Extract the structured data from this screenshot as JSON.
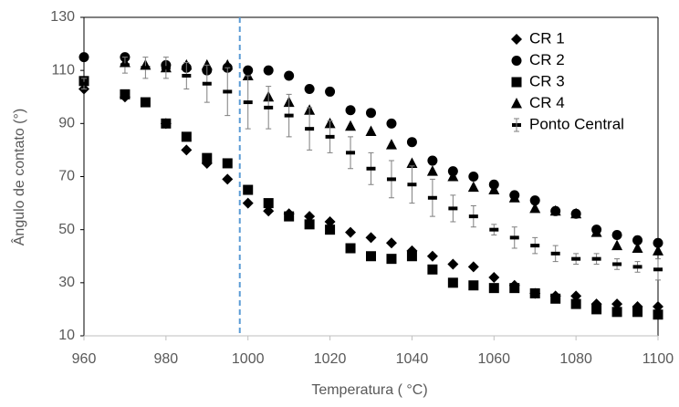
{
  "chart_data": {
    "type": "scatter",
    "x_label": "Temperatura ( °C)",
    "y_label": "Ângulo de contato (°)",
    "x": [
      960,
      970,
      975,
      980,
      985,
      990,
      995,
      1000,
      1005,
      1010,
      1015,
      1020,
      1025,
      1030,
      1035,
      1040,
      1045,
      1050,
      1055,
      1060,
      1065,
      1070,
      1075,
      1080,
      1085,
      1090,
      1095,
      1100
    ],
    "series": [
      {
        "name": "CR 1",
        "color": "#000000",
        "marker": "diamond",
        "values": [
          103,
          100,
          null,
          90,
          80,
          75,
          69,
          60,
          57,
          56,
          55,
          53,
          49,
          47,
          45,
          42,
          40,
          37,
          36,
          32,
          29,
          26,
          25,
          25,
          22,
          22,
          21,
          21
        ]
      },
      {
        "name": "CR 2",
        "color": "#000000",
        "marker": "circle",
        "values": [
          115,
          115,
          null,
          112,
          111,
          110,
          111,
          110,
          110,
          108,
          103,
          102,
          95,
          94,
          90,
          83,
          76,
          72,
          70,
          67,
          63,
          61,
          57,
          56,
          50,
          48,
          46,
          45
        ]
      },
      {
        "name": "CR 3",
        "color": "#000000",
        "marker": "square",
        "values": [
          106,
          101,
          98,
          90,
          85,
          77,
          75,
          65,
          60,
          55,
          52,
          50,
          43,
          40,
          39,
          40,
          35,
          30,
          29,
          28,
          28,
          26,
          24,
          22,
          20,
          19,
          19,
          18
        ]
      },
      {
        "name": "CR 4",
        "color": "#000000",
        "marker": "triangle",
        "values": [
          null,
          113,
          112,
          111,
          112,
          112,
          112,
          108,
          100,
          98,
          95,
          90,
          89,
          87,
          82,
          75,
          72,
          70,
          66,
          65,
          62,
          58,
          57,
          56,
          49,
          44,
          43,
          42
        ]
      },
      {
        "name": "Ponto Central",
        "color": "#000000",
        "marker": "dash",
        "values": [
          105,
          112,
          111,
          111,
          108,
          105,
          102,
          98,
          96,
          93,
          88,
          85,
          79,
          73,
          69,
          67,
          62,
          58,
          55,
          50,
          47,
          44,
          41,
          39,
          39,
          37,
          36,
          35
        ],
        "errors": [
          2,
          3,
          4,
          4,
          5,
          7,
          9,
          10,
          8,
          8,
          8,
          6,
          6,
          6,
          7,
          7,
          7,
          5,
          4,
          2,
          4,
          3,
          3,
          2,
          2,
          2,
          2,
          4
        ]
      }
    ],
    "reference_line": {
      "x": 998,
      "color": "#5b9bd5"
    },
    "xlim": [
      960,
      1100
    ],
    "xticks": [
      960,
      980,
      1000,
      1020,
      1040,
      1060,
      1080,
      1100
    ],
    "ylim": [
      10,
      130
    ],
    "yticks": [
      10,
      30,
      50,
      70,
      90,
      110,
      130
    ],
    "legend": "top-right"
  }
}
